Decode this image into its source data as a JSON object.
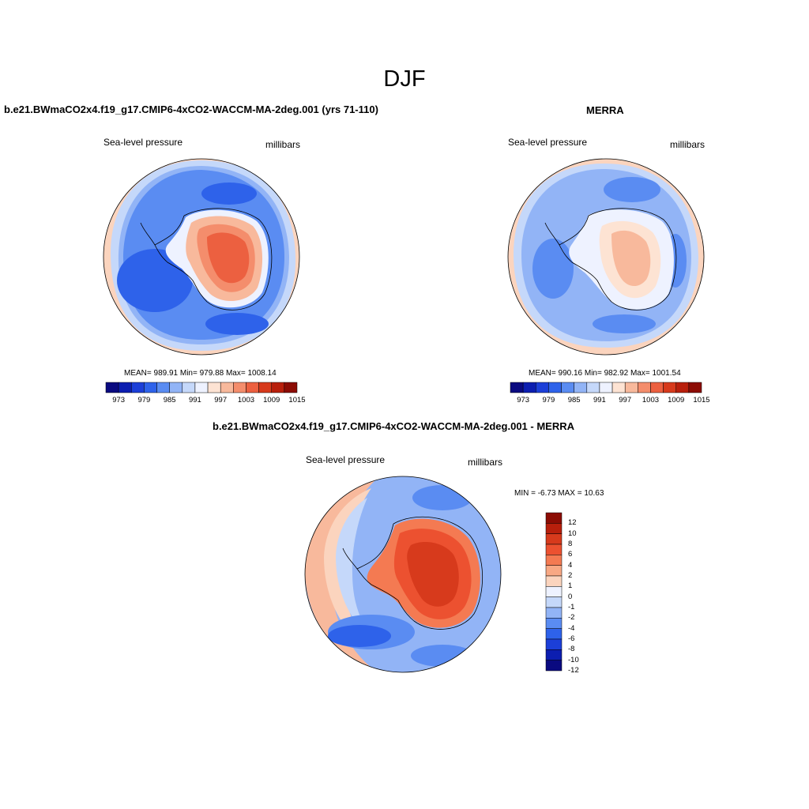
{
  "season": "DJF",
  "panels": {
    "model": {
      "title": "b.e21.BWmaCO2x4.f19_g17.CMIP6-4xCO2-WACCM-MA-2deg.001 (yrs 71-110)",
      "field": "Sea-level pressure",
      "units": "millibars",
      "stats": "MEAN= 989.91  Min= 979.88  Max= 1008.14"
    },
    "obs": {
      "title": "MERRA",
      "field": "Sea-level pressure",
      "units": "millibars",
      "stats": "MEAN= 990.16  Min= 982.92  Max= 1001.54"
    },
    "diff": {
      "title": "b.e21.BWmaCO2x4.f19_g17.CMIP6-4xCO2-WACCM-MA-2deg.001 - MERRA",
      "field": "Sea-level pressure",
      "units": "millibars",
      "minmax": "MIN =  -6.73 MAX =  10.63"
    }
  },
  "colorbar_abs": {
    "colors": [
      "#0a0a80",
      "#0c1eb0",
      "#1c3fd8",
      "#2e62ea",
      "#5a8cf2",
      "#92b4f6",
      "#c5d8fa",
      "#eef2ff",
      "#fde3d3",
      "#f8b99c",
      "#f48d6c",
      "#ec6040",
      "#d73a1c",
      "#b81f0c",
      "#8c0c04"
    ],
    "tick_labels": [
      "973",
      "979",
      "985",
      "991",
      "997",
      "1003",
      "1009",
      "1015"
    ]
  },
  "colorbar_diff": {
    "colors": [
      "#8c0c04",
      "#b81f0c",
      "#d73a1c",
      "#ec5130",
      "#f47a52",
      "#f8a884",
      "#fbd4be",
      "#eef2ff",
      "#c5d8fa",
      "#92b4f6",
      "#5a8cf2",
      "#2e62ea",
      "#1c3fd8",
      "#0c1eb0",
      "#0a0a80"
    ],
    "tick_labels": [
      "12",
      "10",
      "8",
      "6",
      "4",
      "2",
      "1",
      "0",
      "-1",
      "-2",
      "-4",
      "-6",
      "-8",
      "-10",
      "-12"
    ]
  }
}
